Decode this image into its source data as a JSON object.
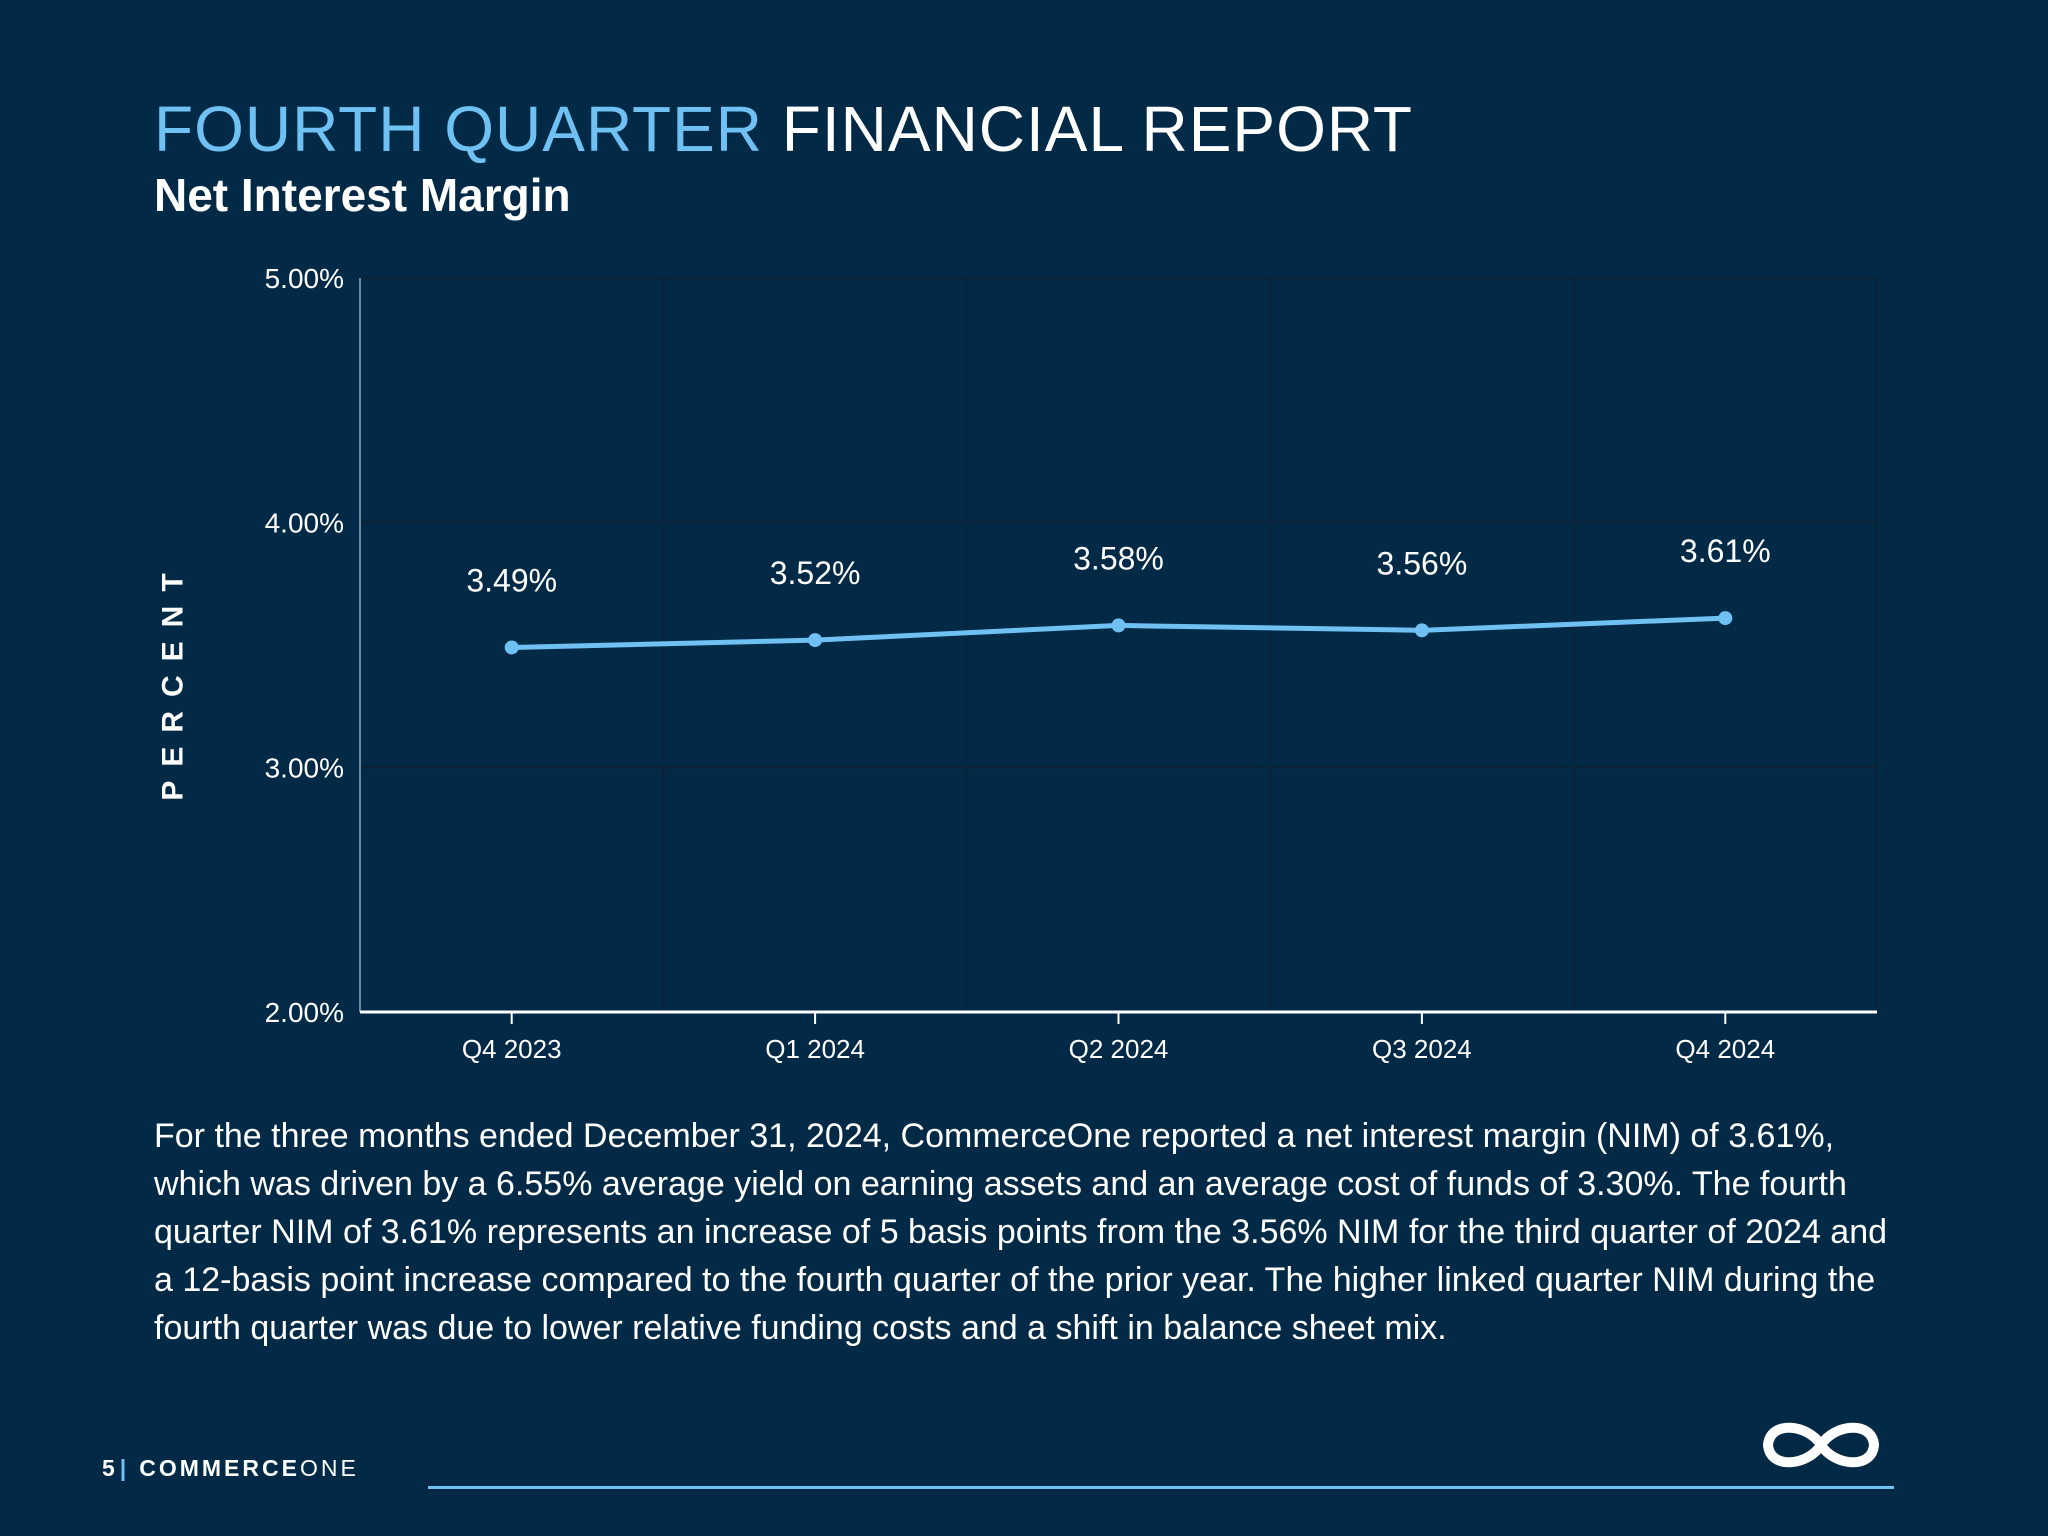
{
  "header": {
    "title_accent": "FOURTH QUARTER",
    "title_rest": "FINANCIAL REPORT",
    "subtitle": "Net Interest Margin"
  },
  "chart_data": {
    "type": "line",
    "categories": [
      "Q4 2023",
      "Q1 2024",
      "Q2 2024",
      "Q3 2024",
      "Q4 2024"
    ],
    "series": [
      {
        "values": [
          3.49,
          3.52,
          3.58,
          3.56,
          3.61
        ]
      }
    ],
    "data_labels": [
      "3.49%",
      "3.52%",
      "3.58%",
      "3.56%",
      "3.61%"
    ],
    "ylabel": "PERCENT",
    "ylim": [
      2.0,
      5.0
    ],
    "yticks": [
      2.0,
      3.0,
      4.0,
      5.0
    ],
    "ytick_labels": [
      "2.00%",
      "3.00%",
      "4.00%",
      "5.00%"
    ],
    "grid": true,
    "line_color": "#6ec1f2"
  },
  "body_text": "For the three months ended December 31, 2024, CommerceOne reported a net interest margin (NIM) of 3.61%, which was driven by a 6.55% average yield on earning assets and an average cost of funds of 3.30%. The fourth quarter NIM of 3.61% represents an increase of 5 basis points from the 3.56% NIM for the third quarter of 2024 and a 12-basis point increase compared to the fourth quarter of the prior year. The higher linked quarter NIM during the fourth quarter was due to lower relative funding costs and a shift in balance sheet mix.",
  "footer": {
    "page_number": "5",
    "separator": "|",
    "brand_bold": "COMMERCE",
    "brand_light": "ONE"
  },
  "logo": {
    "icon": "infinity-logo-icon"
  },
  "colors": {
    "background": "#022a47",
    "accent": "#6ec1f2",
    "text": "#ffffff"
  }
}
